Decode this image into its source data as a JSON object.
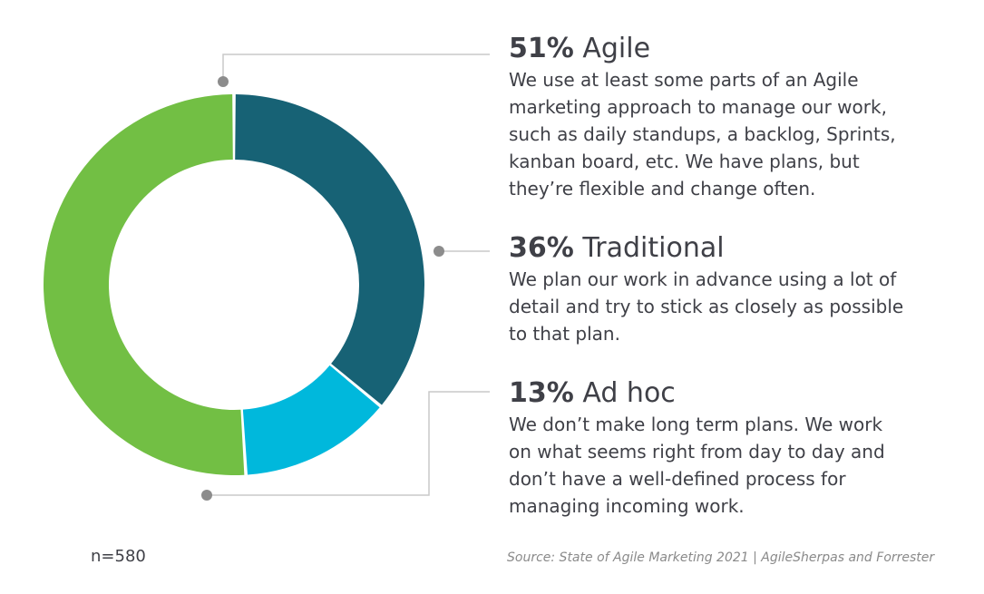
{
  "chart_data": {
    "type": "pie",
    "variant": "donut",
    "slices": [
      {
        "percent_label": "51%",
        "name": "Agile",
        "value": 51,
        "color": "#72bf44",
        "description": "We use at least some parts of an Agile\nmarketing approach to manage our work,\nsuch as daily standups, a backlog, Sprints,\nkanban board, etc. We have plans, but\nthey’re flexible and change often."
      },
      {
        "percent_label": "36%",
        "name": "Traditional",
        "value": 36,
        "color": "#176275",
        "description": "We plan our work in advance using a lot of\ndetail and try to stick as closely as possible\nto that plan."
      },
      {
        "percent_label": "13%",
        "name": "Ad hoc",
        "value": 13,
        "color": "#00b8dc",
        "description": "We don’t make long term plans. We work\non what seems right from day to day and\ndon’t have a well-defined process for\nmanaging incoming work."
      }
    ],
    "sample_size": "n=580",
    "source": "Source: State of Agile Marketing 2021 | AgileSherpas and Forrester",
    "connector_color": "#c9c9c9",
    "dot_color": "#8c8c8c"
  }
}
